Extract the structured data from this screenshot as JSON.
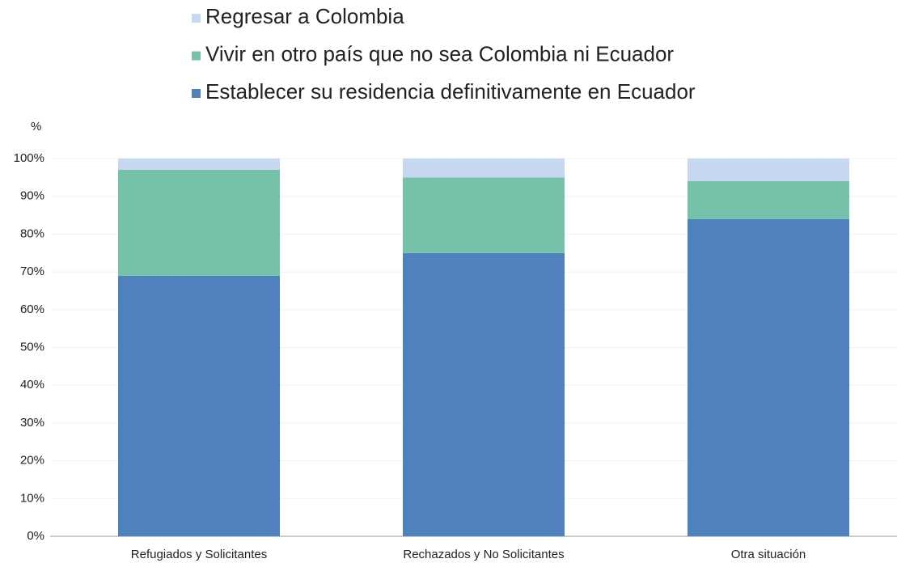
{
  "chart_data": {
    "type": "stacked_bar",
    "ylabel": "%",
    "categories": [
      "Refugiados y Solicitantes",
      "Rechazados y No Solicitantes",
      "Otra situación"
    ],
    "series": [
      {
        "name": "Establecer su residencia definitivamente en Ecuador",
        "color": "#4f81bd",
        "values": [
          69,
          75,
          84
        ]
      },
      {
        "name": "Vivir en otro país que no sea Colombia ni Ecuador",
        "color": "#76c1aa",
        "values": [
          28,
          20,
          10
        ]
      },
      {
        "name": "Regresar a Colombia",
        "color": "#c6d9f0",
        "values": [
          3,
          5,
          6
        ]
      }
    ],
    "ylim": [
      0,
      100
    ],
    "yticks": [
      {
        "value": 0,
        "label": "0%"
      },
      {
        "value": 10,
        "label": "10%"
      },
      {
        "value": 20,
        "label": "20%"
      },
      {
        "value": 30,
        "label": "30%"
      },
      {
        "value": 40,
        "label": "40%"
      },
      {
        "value": 50,
        "label": "50%"
      },
      {
        "value": 60,
        "label": "60%"
      },
      {
        "value": 70,
        "label": "70%"
      },
      {
        "value": 80,
        "label": "80%"
      },
      {
        "value": 90,
        "label": "90%"
      },
      {
        "value": 100,
        "label": "100%"
      }
    ],
    "grid": true
  }
}
